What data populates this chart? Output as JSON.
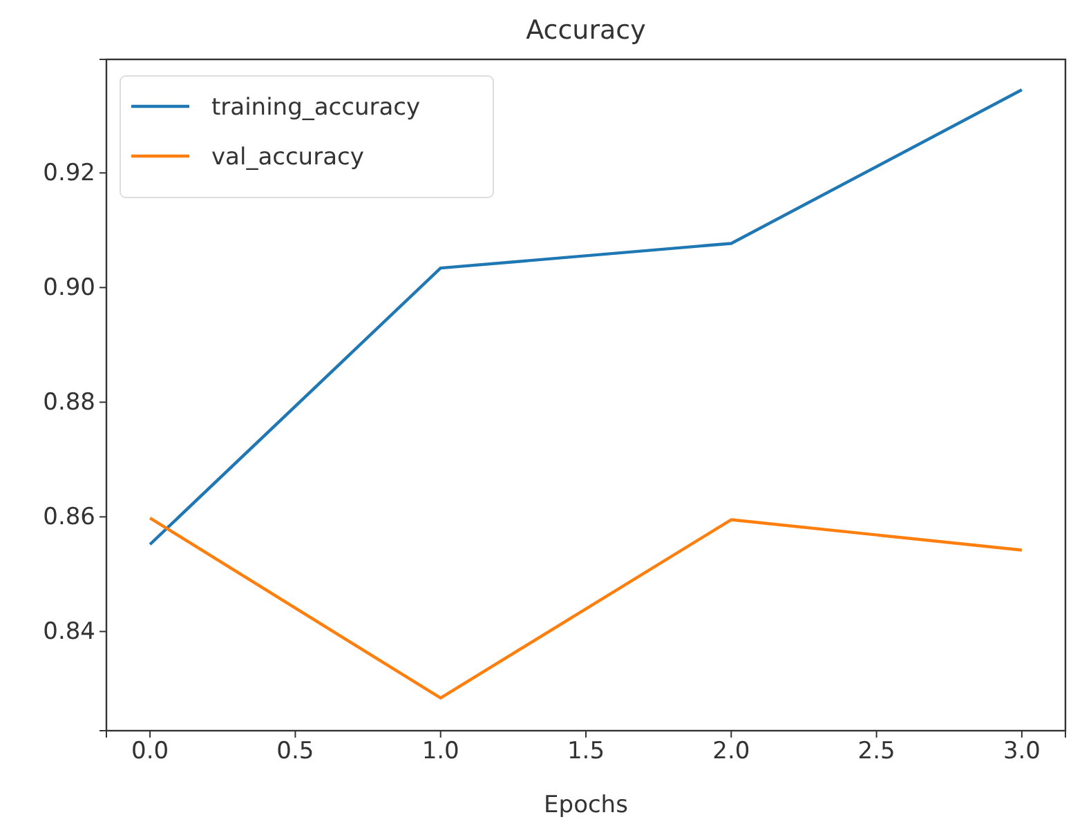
{
  "chart_data": {
    "type": "line",
    "title": "Accuracy",
    "xlabel": "Epochs",
    "x": [
      0,
      1,
      2,
      3
    ],
    "series": [
      {
        "name": "training_accuracy",
        "color": "#1f77b4",
        "values": [
          0.8552,
          0.9034,
          0.9077,
          0.9345
        ]
      },
      {
        "name": "val_accuracy",
        "color": "#ff7f0e",
        "values": [
          0.8598,
          0.8284,
          0.8595,
          0.8542
        ]
      }
    ],
    "xlim": [
      -0.15,
      3.15
    ],
    "xticks": [
      {
        "value": 0,
        "label": "0.0"
      },
      {
        "value": 0.5,
        "label": "0.5"
      },
      {
        "value": 1,
        "label": "1.0"
      },
      {
        "value": 1.5,
        "label": "1.5"
      },
      {
        "value": 2,
        "label": "2.0"
      },
      {
        "value": 2.5,
        "label": "2.5"
      },
      {
        "value": 3,
        "label": "3.0"
      }
    ],
    "ylim": [
      0.8227,
      0.9398
    ],
    "yticks": [
      {
        "value": 0.84,
        "label": "0.84"
      },
      {
        "value": 0.86,
        "label": "0.86"
      },
      {
        "value": 0.88,
        "label": "0.88"
      },
      {
        "value": 0.9,
        "label": "0.90"
      },
      {
        "value": 0.92,
        "label": "0.92"
      }
    ],
    "legend": "top left",
    "grid": false
  }
}
